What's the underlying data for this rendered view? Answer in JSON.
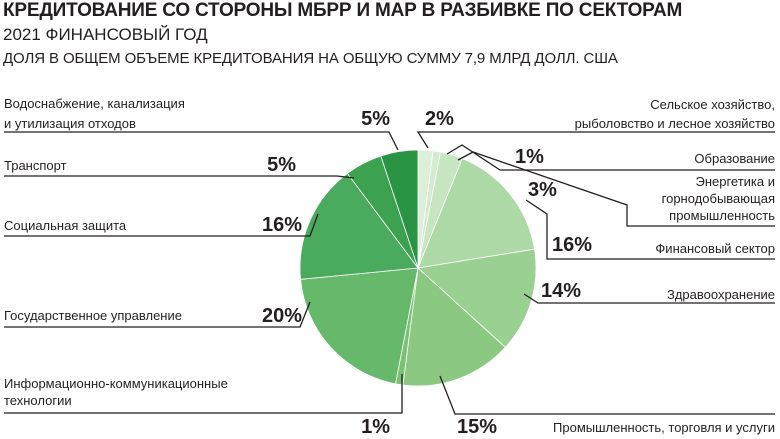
{
  "header": {
    "title": "КРЕДИТОВАНИЕ СО СТОРОНЫ МБРР И МАР В РАЗБИВКЕ ПО СЕКТОРАМ",
    "subtitle": "2021 ФИНАНСОВЫЙ ГОД",
    "description": "ДОЛЯ В ОБЩЕМ ОБЪЕМЕ КРЕДИТОВАНИЯ НА ОБЩУЮ СУММУ 7,9 МЛРД ДОЛЛ. США"
  },
  "chart_data": {
    "type": "pie",
    "title": "КРЕДИТОВАНИЕ СО СТОРОНЫ МБРР И МАР В РАЗБИВКЕ ПО СЕКТОРАМ",
    "subtitle": "2021 ФИНАНСОВЫЙ ГОД",
    "unit": "%",
    "slices": [
      {
        "label": "Сельское хозяйство, рыболовство и лесное хозяйство",
        "label_lines": [
          "Сельское хозяйство,",
          "рыболовство и лесное хозяйство"
        ],
        "value": 2,
        "value_label": "2%",
        "color": "#dcefd8"
      },
      {
        "label": "Образование",
        "label_lines": [
          "Образование"
        ],
        "value": 1,
        "value_label": "1%",
        "color": "#d4ebcf"
      },
      {
        "label": "Энергетика и горнодобывающая промышленность",
        "label_lines": [
          "Энергетика и",
          "горнодобывающая",
          "промышленность"
        ],
        "value": 3,
        "value_label": "3%",
        "color": "#c6e5c0"
      },
      {
        "label": "Финансовый сектор",
        "label_lines": [
          "Финансовый сектор"
        ],
        "value": 16,
        "value_label": "16%",
        "color": "#acd9a5"
      },
      {
        "label": "Здравоохранение",
        "label_lines": [
          "Здравоохранение"
        ],
        "value": 14,
        "value_label": "14%",
        "color": "#9bd093"
      },
      {
        "label": "Промышленность, торговля и услуги",
        "label_lines": [
          "Промышленность, торговля и услуги"
        ],
        "value": 15,
        "value_label": "15%",
        "color": "#8bc983"
      },
      {
        "label": "Информационно-коммуникационные технологии",
        "label_lines": [
          "Информационно-коммуникационные",
          "технологии"
        ],
        "value": 1,
        "value_label": "1%",
        "color": "#7ac174"
      },
      {
        "label": "Государственное управление",
        "label_lines": [
          "Государственное управление"
        ],
        "value": 20,
        "value_label": "20%",
        "color": "#66b96a"
      },
      {
        "label": "Социальная защита",
        "label_lines": [
          "Социальная защита"
        ],
        "value": 16,
        "value_label": "16%",
        "color": "#4aaa5e"
      },
      {
        "label": "Транспорт",
        "label_lines": [
          "Транспорт"
        ],
        "value": 5,
        "value_label": "5%",
        "color": "#3ca24f"
      },
      {
        "label": "Водоснабжение, канализация и утилизация отходов",
        "label_lines": [
          "Водоснабжение, канализация",
          "и утилизация отходов"
        ],
        "value": 5,
        "value_label": "5%",
        "color": "#2b9444"
      }
    ]
  }
}
